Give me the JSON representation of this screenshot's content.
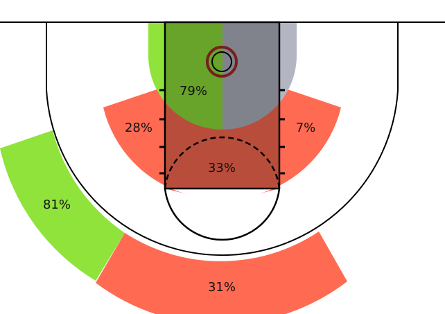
{
  "chart_data": {
    "type": "shot-chart",
    "colors": {
      "hot": "#8fe33a",
      "cold": "#ff6b52",
      "neutral": "#b3b6c2"
    },
    "zones": [
      {
        "id": "restricted-area-left",
        "label": "79%",
        "value": 79,
        "color": "#8fe33a"
      },
      {
        "id": "restricted-area-right",
        "label": "",
        "value": null,
        "color": "#b3b6c2"
      },
      {
        "id": "paint-non-ra",
        "label": "33%",
        "value": 33,
        "color": "#ff6b52"
      },
      {
        "id": "mid-range-left",
        "label": "28%",
        "value": 28,
        "color": "#ff6b52"
      },
      {
        "id": "mid-range-right",
        "label": "7%",
        "value": 7,
        "color": "#ff6b52"
      },
      {
        "id": "left-wing-three",
        "label": "81%",
        "value": 81,
        "color": "#8fe33a"
      },
      {
        "id": "top-three",
        "label": "31%",
        "value": 31,
        "color": "#ff6b52"
      }
    ]
  }
}
